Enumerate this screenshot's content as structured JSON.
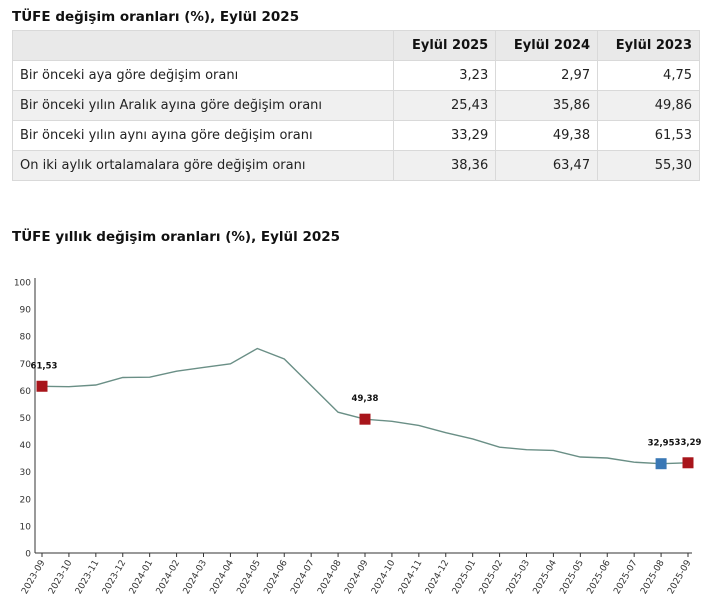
{
  "table": {
    "title": "TÜFE değişim oranları (%), Eylül 2025",
    "headers": [
      "",
      "Eylül 2025",
      "Eylül 2024",
      "Eylül 2023"
    ],
    "rows": [
      {
        "label": "Bir önceki aya göre değişim oranı",
        "values": [
          "3,23",
          "2,97",
          "4,75"
        ]
      },
      {
        "label": "Bir önceki yılın Aralık ayına göre değişim oranı",
        "values": [
          "25,43",
          "35,86",
          "49,86"
        ]
      },
      {
        "label": "Bir önceki yılın aynı ayına göre değişim oranı",
        "values": [
          "33,29",
          "49,38",
          "61,53"
        ]
      },
      {
        "label": "On iki aylık ortalamalara göre değişim oranı",
        "values": [
          "38,36",
          "63,47",
          "55,30"
        ]
      }
    ]
  },
  "chart_data": {
    "type": "line",
    "title": "TÜFE yıllık değişim oranları (%), Eylül 2025",
    "xlabel": "",
    "ylabel": "",
    "ylim": [
      0,
      100
    ],
    "yticks": [
      0,
      10,
      20,
      30,
      40,
      50,
      60,
      70,
      80,
      90,
      100
    ],
    "grid": false,
    "categories": [
      "2023-09",
      "2023-10",
      "2023-11",
      "2023-12",
      "2024-01",
      "2024-02",
      "2024-03",
      "2024-04",
      "2024-05",
      "2024-06",
      "2024-07",
      "2024-08",
      "2024-09",
      "2024-10",
      "2024-11",
      "2024-12",
      "2025-01",
      "2025-02",
      "2025-03",
      "2025-04",
      "2025-05",
      "2025-06",
      "2025-07",
      "2025-08",
      "2025-09"
    ],
    "series": [
      {
        "values": [
          61.53,
          61.36,
          61.98,
          64.77,
          64.86,
          67.07,
          68.5,
          69.8,
          75.45,
          71.6,
          61.78,
          51.97,
          49.38,
          48.58,
          47.09,
          44.38,
          42.12,
          39.05,
          38.1,
          37.86,
          35.41,
          35.05,
          33.52,
          32.95,
          33.29
        ]
      }
    ],
    "line_color": "#6a8f86",
    "highlight_color": "#a8151b",
    "highlight_alt_color": "#3a78b5",
    "annotations": [
      {
        "category": "2023-09",
        "label": "61,53",
        "marker": "red"
      },
      {
        "category": "2024-09",
        "label": "49,38",
        "marker": "red"
      },
      {
        "category": "2025-08",
        "label": "32,95",
        "marker": "blue"
      },
      {
        "category": "2025-09",
        "label": "33,29",
        "marker": "red"
      }
    ]
  }
}
